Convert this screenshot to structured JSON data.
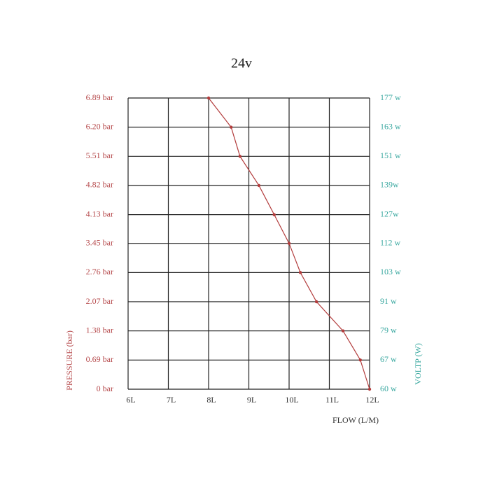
{
  "chart_data": {
    "type": "line",
    "title": "24v",
    "x_label": "FLOW (L/M)",
    "y_label": "PRESSURE (bar)",
    "y2_label": "VOLTP (W)",
    "x": [
      8.0,
      8.56,
      8.78,
      9.25,
      9.63,
      10.0,
      10.28,
      10.68,
      11.34,
      11.77,
      12.0
    ],
    "values": [
      6.89,
      6.2,
      5.51,
      4.82,
      4.13,
      3.45,
      2.76,
      2.07,
      1.38,
      0.69,
      0
    ],
    "color": "#b23b3b",
    "y_label_color": "#b5484a",
    "y2_label_color": "#3aa8a0",
    "xlim": [
      6,
      12
    ],
    "xticks": [
      {
        "value": 6,
        "label": "6L"
      },
      {
        "value": 7,
        "label": "7L"
      },
      {
        "value": 8,
        "label": "8L"
      },
      {
        "value": 9,
        "label": "9L"
      },
      {
        "value": 10,
        "label": "10L"
      },
      {
        "value": 11,
        "label": "11L"
      },
      {
        "value": 12,
        "label": "12L"
      }
    ],
    "ylim": [
      0,
      6.89
    ],
    "yticks": [
      {
        "value": 0,
        "label": "0 bar"
      },
      {
        "value": 0.69,
        "label": "0.69 bar"
      },
      {
        "value": 1.38,
        "label": "1.38 bar"
      },
      {
        "value": 2.07,
        "label": "2.07 bar"
      },
      {
        "value": 2.76,
        "label": "2.76 bar"
      },
      {
        "value": 3.45,
        "label": "3.45 bar"
      },
      {
        "value": 4.13,
        "label": "4.13 bar"
      },
      {
        "value": 4.82,
        "label": "4.82 bar"
      },
      {
        "value": 5.51,
        "label": "5.51 bar"
      },
      {
        "value": 6.2,
        "label": "6.20 bar"
      },
      {
        "value": 6.89,
        "label": "6.89 bar"
      }
    ],
    "y2lim": [
      60,
      177
    ],
    "y2ticks": [
      {
        "value": 60,
        "label": "60 w"
      },
      {
        "value": 67,
        "label": "67 w"
      },
      {
        "value": 79,
        "label": "79 w"
      },
      {
        "value": 91,
        "label": "91 w"
      },
      {
        "value": 103,
        "label": "103 w"
      },
      {
        "value": 112,
        "label": "112 w"
      },
      {
        "value": 127,
        "label": "127w"
      },
      {
        "value": 139,
        "label": "139w"
      },
      {
        "value": 151,
        "label": "151 w"
      },
      {
        "value": 163,
        "label": "163 w"
      },
      {
        "value": 177,
        "label": "177 w"
      }
    ],
    "grid": true
  }
}
